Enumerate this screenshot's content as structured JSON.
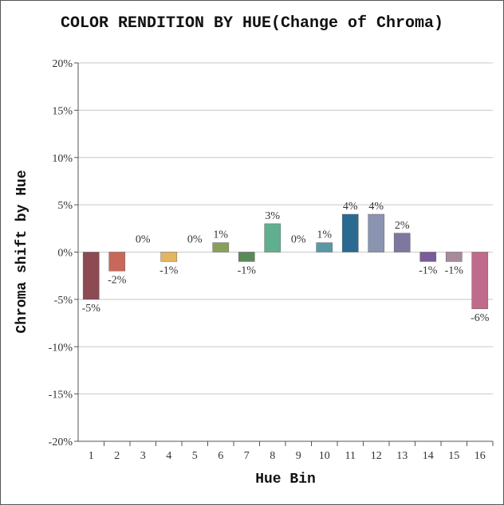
{
  "chart_data": {
    "type": "bar",
    "title": "COLOR RENDITION BY HUE(Change of Chroma)",
    "xlabel": "Hue Bin",
    "ylabel": "Chroma shift by Hue",
    "categories": [
      "1",
      "2",
      "3",
      "4",
      "5",
      "6",
      "7",
      "8",
      "9",
      "10",
      "11",
      "12",
      "13",
      "14",
      "15",
      "16"
    ],
    "values": [
      -5,
      -2,
      0,
      -1,
      0,
      1,
      -1,
      3,
      0,
      1,
      4,
      4,
      2,
      -1,
      -1,
      -6
    ],
    "data_labels": [
      "-5%",
      "-2%",
      "0%",
      "-1%",
      "0%",
      "1%",
      "-1%",
      "3%",
      "0%",
      "1%",
      "4%",
      "4%",
      "2%",
      "-1%",
      "-1%",
      "-6%"
    ],
    "colors": [
      "#8c4a52",
      "#c8685a",
      "#d8a060",
      "#e2b560",
      "#c8c26a",
      "#8aa05a",
      "#5a8a5a",
      "#60b090",
      "#5a9ea0",
      "#5a98a8",
      "#2a6a90",
      "#8a94b0",
      "#7c78a0",
      "#7a5c98",
      "#a78a9c",
      "#c06a8c"
    ],
    "ylim": [
      -20,
      20
    ],
    "yticks": [
      -20,
      -15,
      -10,
      -5,
      0,
      5,
      10,
      15,
      20
    ],
    "ytick_labels": [
      "-20%",
      "-15%",
      "-10%",
      "-5%",
      "0%",
      "5%",
      "10%",
      "15%",
      "20%"
    ],
    "grid": true,
    "legend": "none"
  }
}
